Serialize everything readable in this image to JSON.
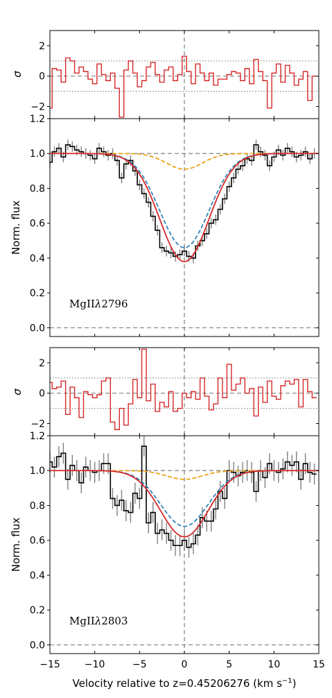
{
  "chart_data": {
    "type": "line",
    "xlabel": "Velocity relative to z=0.45206276 (km s",
    "xlabel_sup": "−1",
    "xlabel_end": ")",
    "xlim": [
      -15,
      15
    ],
    "x_ticks": [
      -15,
      -10,
      -5,
      0,
      5,
      10,
      15
    ],
    "x_tick_labels": [
      "−15",
      "−10",
      "−5",
      "0",
      "5",
      "10",
      "15"
    ],
    "colors": {
      "data": "#000000",
      "error": "#808080",
      "total_model": "#d62728",
      "comp1": "#1f77b4",
      "comp2": "#2ca02c",
      "comp3": "#ff9f0e",
      "guide": "#808080"
    },
    "panels": [
      {
        "ion": "MgIIλ2796",
        "ion_prefix": "MgII",
        "ion_lambda": "λ",
        "ion_wave": "2796",
        "residual": {
          "ylabel": "σ",
          "ylim": [
            -2.8,
            3.0
          ],
          "y_ticks": [
            2,
            0,
            -2
          ],
          "y_tick_labels": [
            "2",
            "0",
            "−2"
          ],
          "x": [
            -15.0,
            -14.5,
            -14.0,
            -13.5,
            -13.0,
            -12.5,
            -12.0,
            -11.5,
            -11.0,
            -10.5,
            -10.0,
            -9.5,
            -9.0,
            -8.5,
            -8.0,
            -7.5,
            -7.0,
            -6.5,
            -6.0,
            -5.5,
            -5.0,
            -4.5,
            -4.0,
            -3.5,
            -3.0,
            -2.5,
            -2.0,
            -1.5,
            -1.0,
            -0.5,
            0.0,
            0.5,
            1.0,
            1.5,
            2.0,
            2.5,
            3.0,
            3.5,
            4.0,
            4.5,
            5.0,
            5.5,
            6.0,
            6.5,
            7.0,
            7.5,
            8.0,
            8.5,
            9.0,
            9.5,
            10.0,
            10.5,
            11.0,
            11.5,
            12.0,
            12.5,
            13.0,
            13.5,
            14.0,
            14.5
          ],
          "values": [
            -2.1,
            0.5,
            0.4,
            -0.4,
            1.2,
            1.0,
            0.2,
            0.6,
            0.3,
            -0.2,
            -0.5,
            0.8,
            0.1,
            -0.3,
            0.2,
            -0.8,
            -2.7,
            0.4,
            1.0,
            0.2,
            -0.7,
            -0.3,
            0.6,
            0.9,
            0.1,
            -0.4,
            0.4,
            0.6,
            -0.3,
            0.1,
            1.3,
            0.3,
            -0.5,
            0.8,
            0.2,
            -0.3,
            0.2,
            -0.6,
            -0.2,
            -0.2,
            0.1,
            0.3,
            0.2,
            -0.3,
            0.5,
            -0.5,
            1.1,
            0.3,
            -0.3,
            -2.1,
            0.2,
            0.8,
            -0.4,
            0.7,
            0.2,
            -0.6,
            -0.2,
            0.3,
            -1.6,
            0.0
          ]
        },
        "spectrum": {
          "ylabel": "Norm. flux",
          "ylim": [
            -0.05,
            1.2
          ],
          "y_ticks": [
            0.0,
            0.2,
            0.4,
            0.6,
            0.8,
            1.0,
            1.2
          ],
          "y_tick_labels": [
            "0.0",
            "0.2",
            "0.4",
            "0.6",
            "0.8",
            "1.0",
            "1.2"
          ],
          "x": [
            -15.0,
            -14.5,
            -14.0,
            -13.5,
            -13.0,
            -12.5,
            -12.0,
            -11.5,
            -11.0,
            -10.5,
            -10.0,
            -9.5,
            -9.0,
            -8.5,
            -8.0,
            -7.5,
            -7.0,
            -6.5,
            -6.0,
            -5.5,
            -5.0,
            -4.5,
            -4.0,
            -3.5,
            -3.0,
            -2.5,
            -2.0,
            -1.5,
            -1.0,
            -0.5,
            0.0,
            0.5,
            1.0,
            1.5,
            2.0,
            2.5,
            3.0,
            3.5,
            4.0,
            4.5,
            5.0,
            5.5,
            6.0,
            6.5,
            7.0,
            7.5,
            8.0,
            8.5,
            9.0,
            9.5,
            10.0,
            10.5,
            11.0,
            11.5,
            12.0,
            12.5,
            13.0,
            13.5,
            14.0,
            14.5
          ],
          "flux": [
            0.95,
            1.01,
            1.03,
            0.98,
            1.05,
            1.04,
            1.02,
            1.01,
            1.0,
            0.99,
            0.97,
            1.03,
            1.01,
            0.99,
            1.0,
            0.96,
            0.86,
            0.94,
            0.96,
            0.9,
            0.82,
            0.77,
            0.72,
            0.64,
            0.56,
            0.46,
            0.44,
            0.43,
            0.41,
            0.42,
            0.44,
            0.41,
            0.4,
            0.47,
            0.5,
            0.54,
            0.6,
            0.62,
            0.68,
            0.74,
            0.81,
            0.86,
            0.91,
            0.93,
            0.97,
            0.96,
            1.05,
            1.01,
            0.99,
            0.93,
            0.98,
            1.02,
            0.99,
            1.03,
            1.01,
            0.98,
            0.99,
            1.01,
            0.97,
            1.0
          ],
          "flux_err": 0.03,
          "model_total": {
            "depth": 0.62,
            "center": 0.0,
            "sigma": 2.75
          },
          "model_comp1": {
            "depth": 0.54,
            "center": 0.0,
            "sigma": 2.75
          },
          "model_comp2": {
            "depth": 0.09,
            "center": 0.0,
            "sigma": 2.0
          },
          "model_comp3": {
            "depth": 0.09,
            "center": 0.0,
            "sigma": 2.0
          }
        }
      },
      {
        "ion": "MgIIλ2803",
        "ion_prefix": "MgII",
        "ion_lambda": "λ",
        "ion_wave": "2803",
        "residual": {
          "ylabel": "σ",
          "ylim": [
            -2.8,
            3.0
          ],
          "y_ticks": [
            2,
            0,
            -2
          ],
          "y_tick_labels": [
            "2",
            "0",
            "−2"
          ],
          "x": [
            -15.0,
            -14.5,
            -14.0,
            -13.5,
            -13.0,
            -12.5,
            -12.0,
            -11.5,
            -11.0,
            -10.5,
            -10.0,
            -9.5,
            -9.0,
            -8.5,
            -8.0,
            -7.5,
            -7.0,
            -6.5,
            -6.0,
            -5.5,
            -5.0,
            -4.5,
            -4.0,
            -3.5,
            -3.0,
            -2.5,
            -2.0,
            -1.5,
            -1.0,
            -0.5,
            0.0,
            0.5,
            1.0,
            1.5,
            2.0,
            2.5,
            3.0,
            3.5,
            4.0,
            4.5,
            5.0,
            5.5,
            6.0,
            6.5,
            7.0,
            7.5,
            8.0,
            8.5,
            9.0,
            9.5,
            10.0,
            10.5,
            11.0,
            11.5,
            12.0,
            12.5,
            13.0,
            13.5,
            14.0,
            14.5
          ],
          "values": [
            0.7,
            0.3,
            0.4,
            0.8,
            -1.4,
            0.4,
            -0.3,
            -1.6,
            0.1,
            -0.1,
            -0.3,
            -0.1,
            0.8,
            1.0,
            -1.9,
            -2.4,
            -1.0,
            -2.1,
            -0.7,
            0.9,
            -0.3,
            2.9,
            -0.5,
            0.6,
            -1.2,
            -0.6,
            -0.9,
            0.1,
            -1.2,
            -1.0,
            0.0,
            -0.3,
            0.1,
            -0.4,
            1.0,
            -0.2,
            -1.1,
            -0.7,
            1.0,
            -0.3,
            1.9,
            0.2,
            0.6,
            1.0,
            0.0,
            0.3,
            -1.5,
            0.4,
            -0.6,
            0.8,
            -0.2,
            -0.4,
            0.5,
            0.8,
            0.6,
            0.9,
            -0.9,
            0.9,
            0.1,
            -0.3
          ]
        },
        "spectrum": {
          "ylabel": "Norm. flux",
          "ylim": [
            -0.05,
            1.2
          ],
          "y_ticks": [
            0.0,
            0.2,
            0.4,
            0.6,
            0.8,
            1.0,
            1.2
          ],
          "y_tick_labels": [
            "0.0",
            "0.2",
            "0.4",
            "0.6",
            "0.8",
            "1.0",
            "1.2"
          ],
          "x": [
            -15.0,
            -14.5,
            -14.0,
            -13.5,
            -13.0,
            -12.5,
            -12.0,
            -11.5,
            -11.0,
            -10.5,
            -10.0,
            -9.5,
            -9.0,
            -8.5,
            -8.0,
            -7.5,
            -7.0,
            -6.5,
            -6.0,
            -5.5,
            -5.0,
            -4.5,
            -4.0,
            -3.5,
            -3.0,
            -2.5,
            -2.0,
            -1.5,
            -1.0,
            -0.5,
            0.0,
            0.5,
            1.0,
            1.5,
            2.0,
            2.5,
            3.0,
            3.5,
            4.0,
            4.5,
            5.0,
            5.5,
            6.0,
            6.5,
            7.0,
            7.5,
            8.0,
            8.5,
            9.0,
            9.5,
            10.0,
            10.5,
            11.0,
            11.5,
            12.0,
            12.5,
            13.0,
            13.5,
            14.0,
            14.5
          ],
          "flux": [
            1.05,
            1.02,
            1.08,
            1.1,
            0.95,
            1.03,
            1.0,
            0.93,
            1.02,
            1.0,
            0.99,
            1.0,
            1.04,
            1.04,
            0.84,
            0.8,
            0.83,
            0.77,
            0.76,
            0.87,
            0.84,
            1.14,
            0.7,
            0.76,
            0.64,
            0.66,
            0.64,
            0.6,
            0.57,
            0.57,
            0.6,
            0.56,
            0.58,
            0.63,
            0.73,
            0.71,
            0.71,
            0.78,
            0.88,
            0.84,
            1.0,
            0.99,
            0.97,
            0.99,
            1.0,
            0.99,
            0.88,
            1.0,
            0.96,
            1.04,
            1.0,
            0.99,
            1.01,
            1.05,
            1.03,
            1.05,
            0.95,
            1.04,
            0.99,
            0.98
          ],
          "flux_err": 0.06,
          "model_total": {
            "depth": 0.38,
            "center": 0.0,
            "sigma": 2.65
          },
          "model_comp1": {
            "depth": 0.32,
            "center": 0.0,
            "sigma": 2.65
          },
          "model_comp2": {
            "depth": 0.05,
            "center": 0.0,
            "sigma": 2.0
          },
          "model_comp3": {
            "depth": 0.05,
            "center": 0.0,
            "sigma": 2.0
          }
        }
      }
    ]
  }
}
